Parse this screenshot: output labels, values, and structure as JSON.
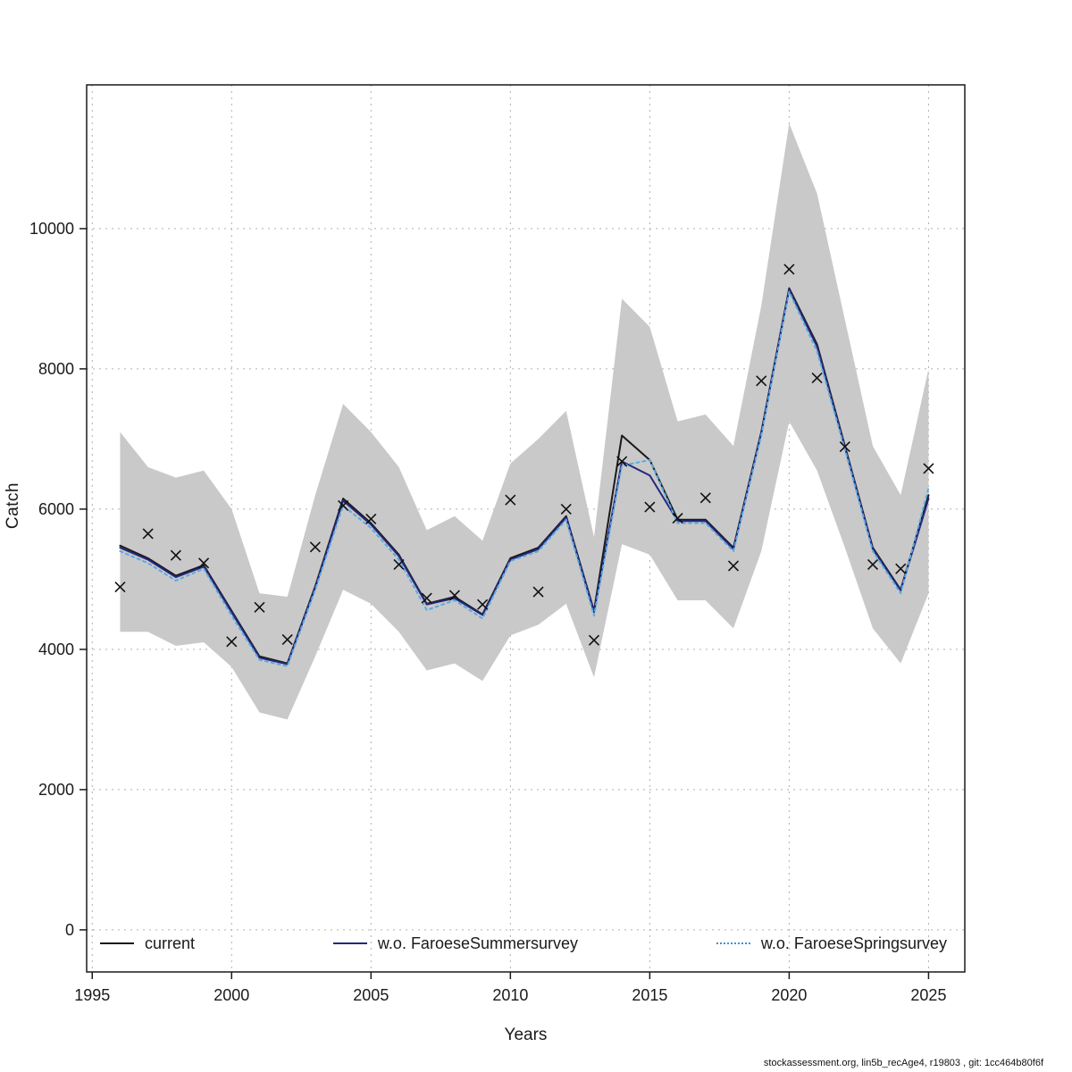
{
  "page": {
    "footer": "stockassessment.org, lin5b_recAge4, r19803 , git: 1cc464b80f6f"
  },
  "chart_data": {
    "type": "line",
    "title": "",
    "xlabel": "Years",
    "ylabel": "Catch",
    "grid": true,
    "legend_position": "bottom-inside",
    "xlim": [
      1994.8,
      2026.3
    ],
    "ylim": [
      -600,
      12050
    ],
    "xticks": [
      1995,
      2000,
      2005,
      2010,
      2015,
      2020,
      2025
    ],
    "yticks": [
      0,
      2000,
      4000,
      6000,
      8000,
      10000
    ],
    "years": [
      1996,
      1997,
      1998,
      1999,
      2000,
      2001,
      2002,
      2003,
      2004,
      2005,
      2006,
      2007,
      2008,
      2009,
      2010,
      2011,
      2012,
      2013,
      2014,
      2015,
      2016,
      2017,
      2018,
      2019,
      2020,
      2021,
      2022,
      2023,
      2024,
      2025
    ],
    "band": {
      "name": "confidence-interval",
      "color": "#c9c9c9",
      "lower": [
        4250,
        4250,
        4050,
        4100,
        3750,
        3100,
        3000,
        3900,
        4850,
        4650,
        4250,
        3700,
        3800,
        3550,
        4200,
        4350,
        4650,
        3600,
        5500,
        5350,
        4700,
        4700,
        4300,
        5400,
        7250,
        6550,
        5450,
        4300,
        3800,
        4800
      ],
      "upper": [
        7100,
        6600,
        6450,
        6550,
        6000,
        4800,
        4750,
        6200,
        7500,
        7100,
        6600,
        5700,
        5900,
        5550,
        6650,
        7000,
        7400,
        5600,
        9000,
        8600,
        7250,
        7350,
        6900,
        8900,
        11500,
        10500,
        8700,
        6900,
        6200,
        8000
      ]
    },
    "series": [
      {
        "name": "current",
        "color": "#1a1a1a",
        "style": "solid",
        "values": [
          5480,
          5300,
          5050,
          5200,
          4550,
          3900,
          3800,
          4900,
          6150,
          5800,
          5350,
          4650,
          4750,
          4500,
          5300,
          5450,
          5900,
          4550,
          7050,
          6700,
          5850,
          5850,
          5450,
          7100,
          9150,
          8350,
          6900,
          5450,
          4850,
          6200
        ]
      },
      {
        "name": "w.o. FaroeseSummersurvey",
        "color": "#26267e",
        "style": "solid",
        "values": [
          5450,
          5280,
          5030,
          5180,
          4530,
          3880,
          3790,
          4880,
          6120,
          5780,
          5330,
          4640,
          4730,
          4490,
          5280,
          5430,
          5880,
          4530,
          6680,
          6480,
          5830,
          5830,
          5430,
          7080,
          9130,
          8320,
          6880,
          5430,
          4840,
          6150
        ]
      },
      {
        "name": "w.o. FaroeseSpringsurvey",
        "color": "#5aabdf",
        "style": "dotted",
        "values": [
          5400,
          5230,
          4980,
          5150,
          4480,
          3850,
          3760,
          4850,
          6050,
          5730,
          5280,
          4560,
          4700,
          4440,
          5260,
          5400,
          5850,
          4480,
          6620,
          6700,
          5800,
          5800,
          5400,
          7050,
          9100,
          8250,
          6850,
          5400,
          4800,
          6300
        ]
      }
    ],
    "observations": {
      "name": "observed-catch",
      "marker": "x",
      "color": "#111111",
      "values": [
        4890,
        5650,
        5340,
        5230,
        4110,
        4600,
        4140,
        5460,
        6050,
        5860,
        5210,
        4730,
        4770,
        4640,
        6130,
        4820,
        6000,
        4130,
        6680,
        6030,
        5870,
        6160,
        5190,
        7830,
        9420,
        7870,
        6890,
        5210,
        5150,
        6580
      ]
    }
  }
}
